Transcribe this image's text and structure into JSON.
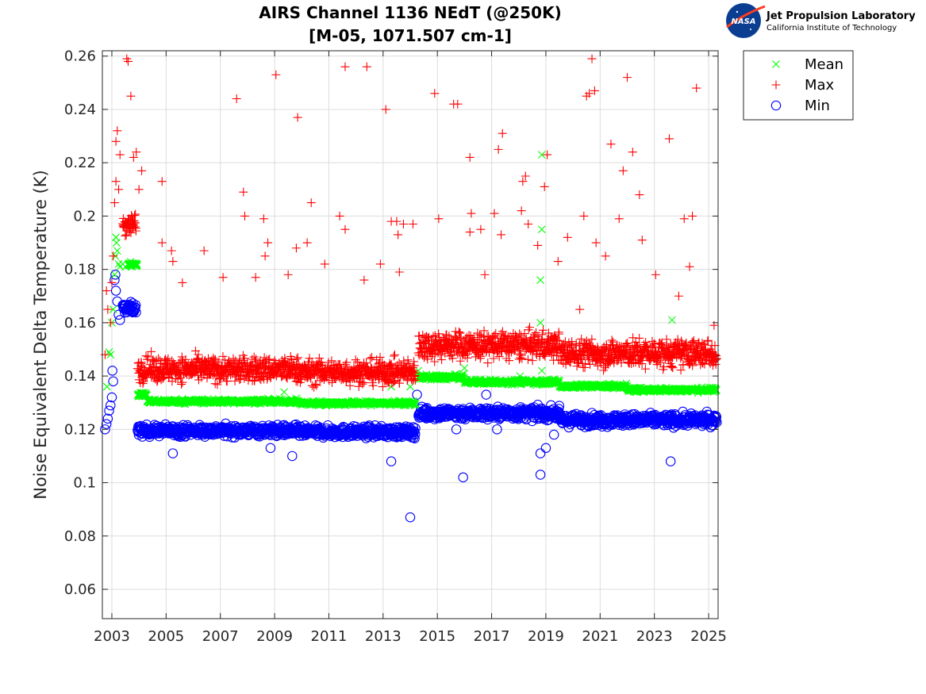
{
  "logo": {
    "nasa_text": "NASA",
    "jpl_title": "Jet Propulsion Laboratory",
    "jpl_subtitle": "California Institute of Technology"
  },
  "chart_data": {
    "type": "scatter",
    "title": "AIRS Channel 1136 NEdT (@250K)",
    "subtitle": "[M-05, 1071.507 cm-1]",
    "xlabel": "",
    "ylabel": "Noise Equivalent Delta Temperature (K)",
    "xlim": [
      2002.65,
      2025.35
    ],
    "ylim": [
      0.049,
      0.262
    ],
    "x_ticks": [
      "2003",
      "2005",
      "2007",
      "2009",
      "2011",
      "2013",
      "2015",
      "2017",
      "2019",
      "2021",
      "2023",
      "2025"
    ],
    "y_ticks": [
      "0.06",
      "0.08",
      "0.1",
      "0.12",
      "0.14",
      "0.16",
      "0.18",
      "0.2",
      "0.22",
      "0.24",
      "0.26"
    ],
    "grid": true,
    "legend_position": "outside-top-right",
    "colors": {
      "mean": "#00ff00",
      "max": "#ff0000",
      "min": "#0000ff"
    },
    "series": [
      {
        "name": "Mean",
        "marker": "x",
        "segments": [
          {
            "x_start": 2003.6,
            "x_end": 2003.95,
            "level": 0.182,
            "spread": 0.0008
          },
          {
            "x_start": 2003.95,
            "x_end": 2004.3,
            "level": 0.133,
            "spread": 0.0008
          },
          {
            "x_start": 2004.3,
            "x_end": 2009.9,
            "level": 0.1305,
            "spread": 0.0008
          },
          {
            "x_start": 2009.9,
            "x_end": 2014.2,
            "level": 0.1298,
            "spread": 0.0008
          },
          {
            "x_start": 2014.3,
            "x_end": 2016.0,
            "level": 0.1395,
            "spread": 0.0009
          },
          {
            "x_start": 2016.0,
            "x_end": 2019.5,
            "level": 0.1378,
            "spread": 0.0009
          },
          {
            "x_start": 2019.5,
            "x_end": 2022.0,
            "level": 0.1362,
            "spread": 0.0008
          },
          {
            "x_start": 2022.0,
            "x_end": 2025.3,
            "level": 0.1348,
            "spread": 0.0008
          }
        ],
        "points": [
          [
            2002.82,
            0.136
          ],
          [
            2002.9,
            0.149
          ],
          [
            2002.95,
            0.148
          ],
          [
            2003.0,
            0.16
          ],
          [
            2003.05,
            0.165
          ],
          [
            2003.1,
            0.178
          ],
          [
            2003.13,
            0.185
          ],
          [
            2003.15,
            0.192
          ],
          [
            2003.17,
            0.19
          ],
          [
            2003.2,
            0.187
          ],
          [
            2003.25,
            0.182
          ],
          [
            2003.3,
            0.181
          ],
          [
            2003.4,
            0.182
          ],
          [
            2003.5,
            0.181
          ],
          [
            2009.35,
            0.134
          ],
          [
            2013.3,
            0.136
          ],
          [
            2014.0,
            0.136
          ],
          [
            2014.3,
            0.142
          ],
          [
            2016.0,
            0.143
          ],
          [
            2018.05,
            0.14
          ],
          [
            2018.85,
            0.223
          ],
          [
            2018.85,
            0.195
          ],
          [
            2018.8,
            0.176
          ],
          [
            2018.8,
            0.16
          ],
          [
            2018.85,
            0.142
          ],
          [
            2023.65,
            0.161
          ]
        ]
      },
      {
        "name": "Max",
        "marker": "+",
        "segments": [
          {
            "x_start": 2003.4,
            "x_end": 2003.9,
            "level": 0.197,
            "spread": 0.004
          },
          {
            "x_start": 2003.95,
            "x_end": 2009.9,
            "level": 0.1425,
            "spread": 0.0045
          },
          {
            "x_start": 2009.9,
            "x_end": 2014.2,
            "level": 0.1415,
            "spread": 0.0045
          },
          {
            "x_start": 2014.3,
            "x_end": 2019.5,
            "level": 0.1515,
            "spread": 0.005
          },
          {
            "x_start": 2019.5,
            "x_end": 2025.3,
            "level": 0.1485,
            "spread": 0.005
          }
        ],
        "points": [
          [
            2002.75,
            0.148
          ],
          [
            2002.8,
            0.172
          ],
          [
            2002.85,
            0.165
          ],
          [
            2002.95,
            0.16
          ],
          [
            2003.0,
            0.175
          ],
          [
            2003.05,
            0.185
          ],
          [
            2003.1,
            0.205
          ],
          [
            2003.15,
            0.213
          ],
          [
            2003.15,
            0.228
          ],
          [
            2003.2,
            0.232
          ],
          [
            2003.3,
            0.223
          ],
          [
            2003.25,
            0.21
          ],
          [
            2003.55,
            0.259
          ],
          [
            2003.6,
            0.258
          ],
          [
            2003.7,
            0.245
          ],
          [
            2003.8,
            0.222
          ],
          [
            2003.9,
            0.224
          ],
          [
            2004.1,
            0.217
          ],
          [
            2004.0,
            0.21
          ],
          [
            2004.85,
            0.213
          ],
          [
            2004.85,
            0.19
          ],
          [
            2005.2,
            0.187
          ],
          [
            2005.25,
            0.183
          ],
          [
            2005.6,
            0.175
          ],
          [
            2006.4,
            0.187
          ],
          [
            2007.1,
            0.177
          ],
          [
            2007.6,
            0.244
          ],
          [
            2007.85,
            0.209
          ],
          [
            2007.9,
            0.2
          ],
          [
            2008.3,
            0.177
          ],
          [
            2008.6,
            0.199
          ],
          [
            2008.65,
            0.185
          ],
          [
            2008.75,
            0.19
          ],
          [
            2009.05,
            0.253
          ],
          [
            2009.5,
            0.178
          ],
          [
            2009.8,
            0.188
          ],
          [
            2009.85,
            0.237
          ],
          [
            2010.2,
            0.19
          ],
          [
            2010.35,
            0.205
          ],
          [
            2010.85,
            0.182
          ],
          [
            2011.4,
            0.2
          ],
          [
            2011.6,
            0.195
          ],
          [
            2011.6,
            0.256
          ],
          [
            2012.4,
            0.256
          ],
          [
            2012.3,
            0.176
          ],
          [
            2012.9,
            0.182
          ],
          [
            2013.1,
            0.24
          ],
          [
            2013.3,
            0.198
          ],
          [
            2013.5,
            0.198
          ],
          [
            2013.55,
            0.193
          ],
          [
            2013.6,
            0.179
          ],
          [
            2013.75,
            0.197
          ],
          [
            2014.1,
            0.197
          ],
          [
            2014.9,
            0.246
          ],
          [
            2015.05,
            0.199
          ],
          [
            2015.6,
            0.242
          ],
          [
            2015.75,
            0.242
          ],
          [
            2016.2,
            0.222
          ],
          [
            2016.25,
            0.201
          ],
          [
            2016.2,
            0.194
          ],
          [
            2016.6,
            0.195
          ],
          [
            2016.75,
            0.178
          ],
          [
            2017.1,
            0.201
          ],
          [
            2017.25,
            0.225
          ],
          [
            2017.4,
            0.231
          ],
          [
            2017.35,
            0.193
          ],
          [
            2018.1,
            0.202
          ],
          [
            2018.15,
            0.213
          ],
          [
            2018.25,
            0.215
          ],
          [
            2018.35,
            0.197
          ],
          [
            2018.7,
            0.189
          ],
          [
            2018.95,
            0.211
          ],
          [
            2019.05,
            0.223
          ],
          [
            2019.45,
            0.183
          ],
          [
            2019.8,
            0.192
          ],
          [
            2020.25,
            0.165
          ],
          [
            2020.4,
            0.2
          ],
          [
            2020.5,
            0.245
          ],
          [
            2020.6,
            0.246
          ],
          [
            2020.7,
            0.259
          ],
          [
            2020.8,
            0.247
          ],
          [
            2020.85,
            0.19
          ],
          [
            2021.2,
            0.185
          ],
          [
            2021.4,
            0.227
          ],
          [
            2021.7,
            0.199
          ],
          [
            2021.85,
            0.217
          ],
          [
            2022.0,
            0.252
          ],
          [
            2022.2,
            0.224
          ],
          [
            2022.45,
            0.208
          ],
          [
            2022.55,
            0.191
          ],
          [
            2023.05,
            0.178
          ],
          [
            2023.55,
            0.229
          ],
          [
            2023.9,
            0.17
          ],
          [
            2024.1,
            0.199
          ],
          [
            2024.4,
            0.2
          ],
          [
            2024.55,
            0.248
          ],
          [
            2024.3,
            0.181
          ],
          [
            2025.2,
            0.159
          ]
        ]
      },
      {
        "name": "Min",
        "marker": "o",
        "segments": [
          {
            "x_start": 2003.4,
            "x_end": 2003.9,
            "level": 0.1655,
            "spread": 0.002
          },
          {
            "x_start": 2003.95,
            "x_end": 2009.9,
            "level": 0.1195,
            "spread": 0.002
          },
          {
            "x_start": 2009.9,
            "x_end": 2014.2,
            "level": 0.119,
            "spread": 0.002
          },
          {
            "x_start": 2014.3,
            "x_end": 2019.5,
            "level": 0.126,
            "spread": 0.0022
          },
          {
            "x_start": 2019.5,
            "x_end": 2025.3,
            "level": 0.1235,
            "spread": 0.0022
          }
        ],
        "points": [
          [
            2002.75,
            0.12
          ],
          [
            2002.8,
            0.122
          ],
          [
            2002.85,
            0.124
          ],
          [
            2002.9,
            0.127
          ],
          [
            2002.95,
            0.129
          ],
          [
            2003.0,
            0.132
          ],
          [
            2003.02,
            0.142
          ],
          [
            2003.05,
            0.138
          ],
          [
            2003.1,
            0.176
          ],
          [
            2003.13,
            0.178
          ],
          [
            2003.15,
            0.172
          ],
          [
            2003.2,
            0.168
          ],
          [
            2003.25,
            0.163
          ],
          [
            2003.3,
            0.161
          ],
          [
            2005.25,
            0.111
          ],
          [
            2008.85,
            0.113
          ],
          [
            2009.65,
            0.11
          ],
          [
            2013.3,
            0.108
          ],
          [
            2014.0,
            0.087
          ],
          [
            2014.25,
            0.133
          ],
          [
            2015.7,
            0.12
          ],
          [
            2015.95,
            0.102
          ],
          [
            2016.8,
            0.133
          ],
          [
            2017.2,
            0.12
          ],
          [
            2018.8,
            0.111
          ],
          [
            2018.8,
            0.103
          ],
          [
            2019.0,
            0.113
          ],
          [
            2019.3,
            0.118
          ],
          [
            2023.6,
            0.108
          ]
        ]
      }
    ]
  }
}
